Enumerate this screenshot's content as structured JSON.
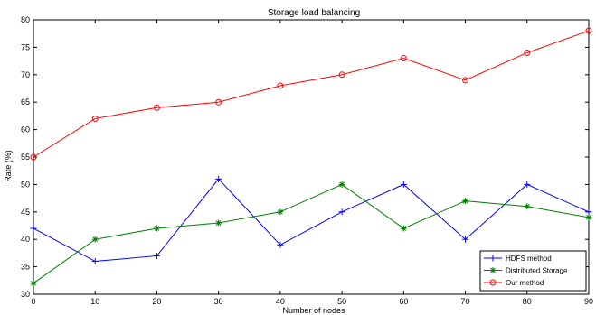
{
  "chart_data": {
    "type": "line",
    "title": "Storage load balancing",
    "xlabel": "Number of nodes",
    "ylabel": "Rate (%)",
    "x": [
      0,
      10,
      20,
      30,
      40,
      50,
      60,
      70,
      80,
      90
    ],
    "xlim": [
      0,
      90
    ],
    "ylim": [
      30,
      80
    ],
    "xticks": [
      0,
      10,
      20,
      30,
      40,
      50,
      60,
      70,
      80,
      90
    ],
    "yticks": [
      30,
      35,
      40,
      45,
      50,
      55,
      60,
      65,
      70,
      75,
      80
    ],
    "grid": false,
    "legend_position": "bottom-right",
    "series": [
      {
        "name": "HDFS method",
        "color": "#0000ff",
        "marker": "plus",
        "values": [
          42,
          36,
          37,
          51,
          39,
          45,
          50,
          40,
          50,
          45
        ]
      },
      {
        "name": "Distributed Storage",
        "color": "#008000",
        "marker": "star",
        "values": [
          32,
          40,
          42,
          43,
          45,
          50,
          42,
          47,
          46,
          44
        ]
      },
      {
        "name": "Our method",
        "color": "#ff0000",
        "marker": "circle",
        "values": [
          55,
          62,
          64,
          65,
          68,
          70,
          73,
          69,
          74,
          78
        ]
      }
    ]
  }
}
